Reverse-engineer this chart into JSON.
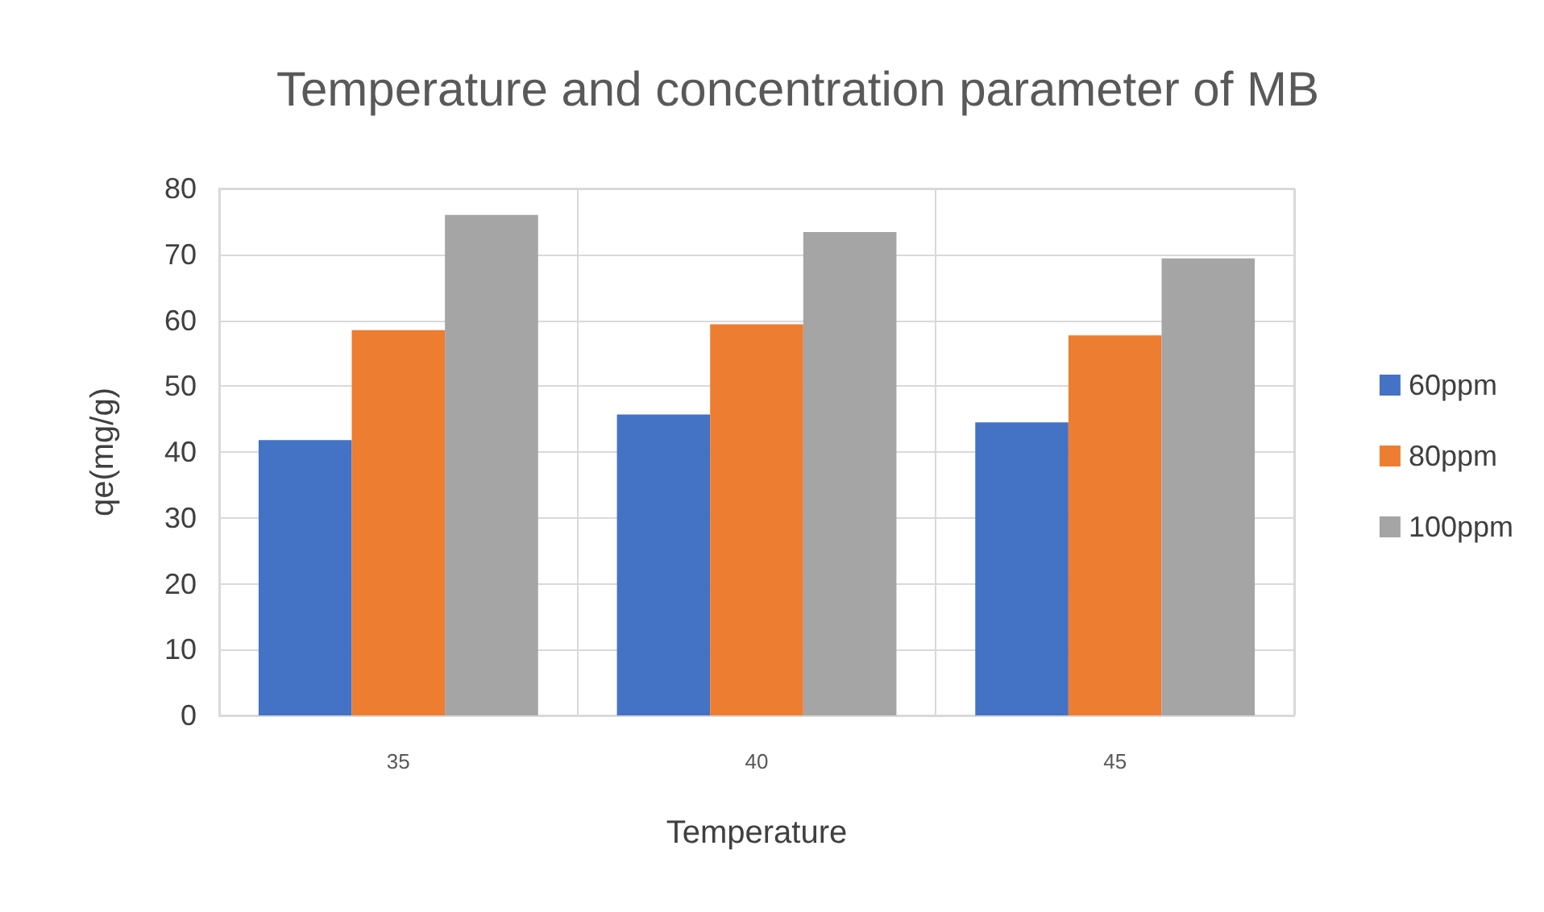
{
  "chart_data": {
    "type": "bar",
    "title": "Temperature and concentration parameter of MB",
    "xlabel": "Temperature",
    "ylabel": "qe(mg/g)",
    "categories": [
      "35",
      "40",
      "45"
    ],
    "series": [
      {
        "name": "60ppm",
        "color": "#4472c4",
        "values": [
          41.8,
          45.7,
          44.5
        ]
      },
      {
        "name": "80ppm",
        "color": "#ed7d31",
        "values": [
          58.5,
          59.4,
          57.7
        ]
      },
      {
        "name": "100ppm",
        "color": "#a5a5a5",
        "values": [
          76.0,
          73.4,
          69.4
        ]
      }
    ],
    "ylim": [
      0,
      80
    ],
    "yticks": [
      0,
      10,
      20,
      30,
      40,
      50,
      60,
      70,
      80
    ],
    "grid": true,
    "legend": "right"
  }
}
